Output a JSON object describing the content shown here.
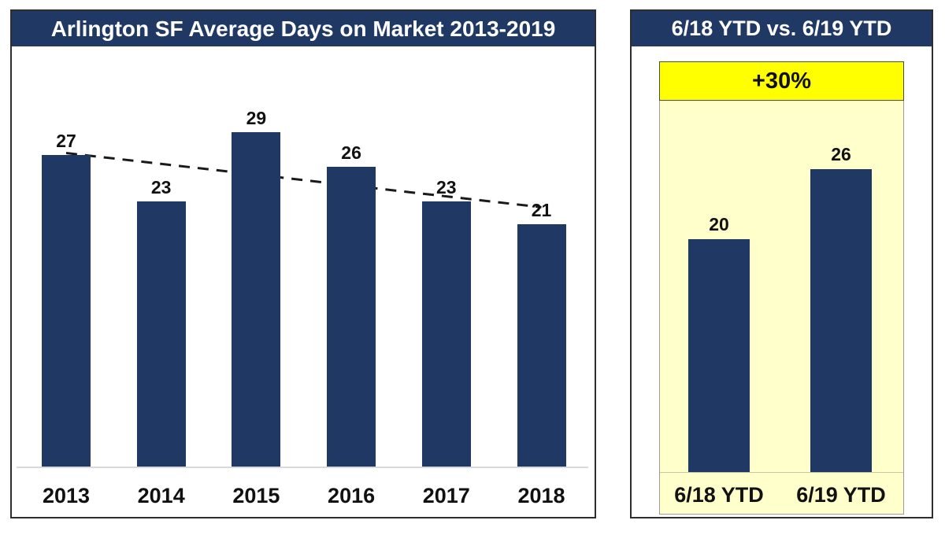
{
  "left_panel": {
    "title_bg": "#1F3864",
    "title_color": "#FFFFFF"
  },
  "right_panel": {
    "panel_bg": "#FFFFCC",
    "badge_bg": "#FFFF00"
  },
  "colors": {
    "bar": "#1F3864",
    "trendline": "#1a1a1a",
    "baseline": "#D9D9D9"
  },
  "chart_data": [
    {
      "type": "bar",
      "title": "Arlington SF Average Days on Market 2013-2019",
      "categories": [
        "2013",
        "2014",
        "2015",
        "2016",
        "2017",
        "2018"
      ],
      "values": [
        27,
        23,
        29,
        26,
        23,
        21
      ],
      "ylabel": "",
      "xlabel": "",
      "ylim": [
        0,
        36
      ],
      "grid": false,
      "data_labels": true,
      "bar_color": "#1F3864",
      "trendline": {
        "style": "dashed",
        "color": "#1a1a1a",
        "start_value": 27.2,
        "end_value": 22.5
      }
    },
    {
      "type": "bar",
      "title": "6/18 YTD vs. 6/19 YTD",
      "categories": [
        "6/18 YTD",
        "6/19 YTD"
      ],
      "values": [
        20,
        26
      ],
      "ylabel": "",
      "xlabel": "",
      "ylim": [
        0,
        35
      ],
      "grid": false,
      "data_labels": true,
      "bar_color": "#1F3864",
      "annotation": "+30%"
    }
  ]
}
